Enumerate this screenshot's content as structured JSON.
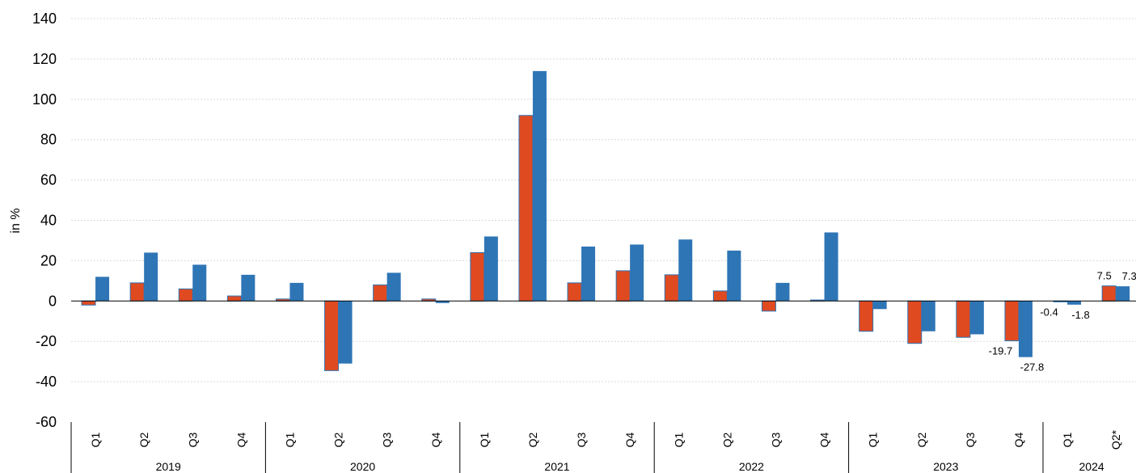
{
  "chart_data": {
    "type": "bar",
    "ylabel": "in %",
    "ylim": [
      -60,
      140
    ],
    "yticks": [
      140,
      120,
      100,
      80,
      60,
      40,
      20,
      0,
      -20,
      -40,
      -60
    ],
    "grid": true,
    "categories": [
      "Q1",
      "Q2",
      "Q3",
      "Q4",
      "Q1",
      "Q2",
      "Q3",
      "Q4",
      "Q1",
      "Q2",
      "Q3",
      "Q4",
      "Q1",
      "Q2",
      "Q3",
      "Q4",
      "Q1",
      "Q2",
      "Q3",
      "Q4",
      "Q1",
      "Q2*"
    ],
    "groups": [
      {
        "label": "2019",
        "count": 4
      },
      {
        "label": "2020",
        "count": 4
      },
      {
        "label": "2021",
        "count": 4
      },
      {
        "label": "2022",
        "count": 4
      },
      {
        "label": "2023",
        "count": 4
      },
      {
        "label": "2024",
        "count": 2
      }
    ],
    "series": [
      {
        "color": "#e04a20",
        "values": [
          -2,
          9,
          6,
          2.5,
          1,
          -34.5,
          8,
          1,
          24,
          92,
          9,
          15,
          13,
          5,
          -5,
          0.5,
          -15,
          -21,
          -18,
          -19.7,
          -0.4,
          7.5
        ]
      },
      {
        "color": "#2e75b6",
        "values": [
          12,
          24,
          18,
          13,
          9,
          -31,
          14,
          -1,
          32,
          114,
          27,
          28,
          30.5,
          25,
          9,
          34,
          -4,
          -15,
          -16.5,
          -27.8,
          -1.8,
          7.3
        ]
      }
    ],
    "data_labels": [
      {
        "series": 0,
        "index": 19,
        "text": "-19.7"
      },
      {
        "series": 1,
        "index": 19,
        "text": "-27.8"
      },
      {
        "series": 0,
        "index": 20,
        "text": "-0.4"
      },
      {
        "series": 1,
        "index": 20,
        "text": "-1.8"
      },
      {
        "series": 0,
        "index": 21,
        "text": "7.5"
      },
      {
        "series": 1,
        "index": 21,
        "text": "7.3"
      }
    ]
  }
}
